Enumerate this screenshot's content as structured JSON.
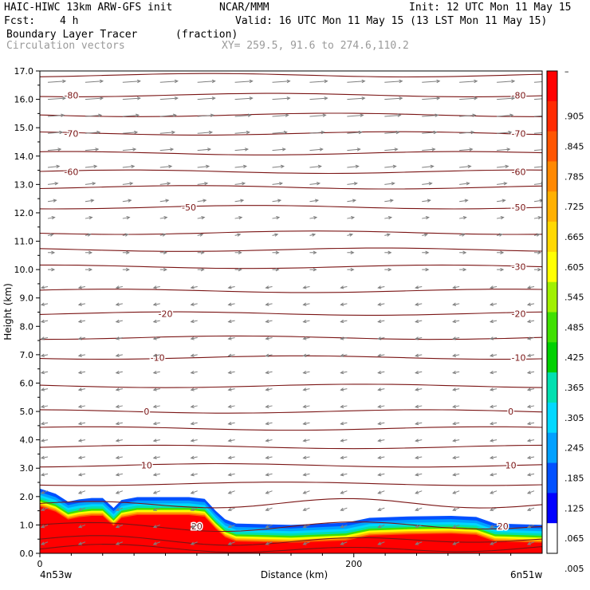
{
  "header": {
    "model": "HAIC-HIWC 13km ARW-GFS init",
    "org": "NCAR/MMM",
    "init": "Init: 12 UTC Mon 11 May 15",
    "fcst_label": "Fcst:",
    "fcst_value": "4 h",
    "valid": "Valid: 16 UTC Mon 11 May 15 (13 LST Mon 11 May 15)",
    "field": "Boundary Layer Tracer",
    "units": "(fraction)",
    "overlay": "Circulation vectors",
    "xy": "XY= 259.5, 91.6 to 274.6,110.2"
  },
  "colors": {
    "contour": "#7a1414",
    "vector": "#7f7f7f",
    "scale": [
      "#ffffff",
      "#0000ff",
      "#0050ff",
      "#00a0ff",
      "#00d8ff",
      "#00e0b0",
      "#00d000",
      "#40e000",
      "#a0f000",
      "#ffff00",
      "#ffd800",
      "#ffb000",
      "#ff8800",
      "#ff5500",
      "#ff2a00",
      "#ff0000"
    ]
  },
  "chart_data": {
    "type": "cross-section",
    "xlabel": "Distance (km)",
    "ylabel": "Height (km)",
    "xlim": [
      0,
      320
    ],
    "ylim": [
      0,
      17.0
    ],
    "x_ticks": [
      "0",
      "200"
    ],
    "y_ticks": [
      "0.0",
      "1.0",
      "2.0",
      "3.0",
      "4.0",
      "5.0",
      "6.0",
      "7.0",
      "8.0",
      "9.0",
      "10.0",
      "11.0",
      "12.0",
      "13.0",
      "14.0",
      "15.0",
      "16.0",
      "17.0"
    ],
    "endpoints": {
      "left": "4n53w",
      "right": "6n51w"
    },
    "colorbar": {
      "top_label": "–",
      "labels": [
        ".905",
        ".845",
        ".785",
        ".725",
        ".665",
        ".605",
        ".545",
        ".485",
        ".425",
        ".365",
        ".305",
        ".245",
        ".185",
        ".125",
        ".065",
        ".005"
      ]
    },
    "temperature_contours": [
      {
        "label": "-80",
        "height": 16.15,
        "label_x": [
          20,
          305
        ]
      },
      {
        "label": "-70",
        "height": 14.8,
        "label_x": [
          20,
          305
        ]
      },
      {
        "label": "-60",
        "height": 13.45,
        "label_x": [
          20,
          305
        ]
      },
      {
        "label": "-50",
        "height": 12.2,
        "label_x": [
          95,
          305
        ]
      },
      {
        "label": "-30",
        "height": 10.1,
        "label_x": [
          305
        ]
      },
      {
        "label": "-20",
        "height": 8.45,
        "label_x": [
          80,
          305
        ]
      },
      {
        "label": "-10",
        "height": 6.9,
        "label_x": [
          75,
          305
        ]
      },
      {
        "label": "0",
        "height": 5.0,
        "label_x": [
          68,
          300
        ]
      },
      {
        "label": "10",
        "height": 3.1,
        "label_x": [
          68,
          300
        ]
      },
      {
        "label": "20",
        "height": 0.95,
        "label_x": [
          100,
          295
        ]
      }
    ],
    "contour_levels": [
      0.15,
      0.45,
      0.95,
      1.75,
      2.45,
      3.1,
      3.75,
      4.4,
      5.0,
      5.9,
      6.9,
      7.6,
      8.45,
      9.25,
      10.1,
      10.7,
      11.3,
      12.2,
      12.9,
      13.45,
      14.1,
      14.8,
      15.45,
      16.15,
      16.85
    ],
    "tracer_top_km": [
      [
        0,
        2.28
      ],
      [
        10,
        2.1
      ],
      [
        18,
        1.82
      ],
      [
        25,
        1.9
      ],
      [
        33,
        1.95
      ],
      [
        40,
        1.95
      ],
      [
        47,
        1.6
      ],
      [
        52,
        1.88
      ],
      [
        62,
        1.98
      ],
      [
        75,
        1.98
      ],
      [
        95,
        1.98
      ],
      [
        105,
        1.92
      ],
      [
        112,
        1.5
      ],
      [
        118,
        1.2
      ],
      [
        125,
        1.05
      ],
      [
        160,
        1.0
      ],
      [
        195,
        1.08
      ],
      [
        210,
        1.25
      ],
      [
        235,
        1.3
      ],
      [
        262,
        1.32
      ],
      [
        278,
        1.28
      ],
      [
        290,
        1.05
      ],
      [
        320,
        1.0
      ]
    ],
    "tracer_bands": [
      {
        "fraction": 0.065,
        "depth_km": 0.0
      },
      {
        "fraction": 0.125,
        "depth_km": 0.12
      },
      {
        "fraction": 0.185,
        "depth_km": 0.22
      },
      {
        "fraction": 0.245,
        "depth_km": 0.3
      },
      {
        "fraction": 0.365,
        "depth_km": 0.38
      },
      {
        "fraction": 0.485,
        "depth_km": 0.45
      },
      {
        "fraction": 0.605,
        "depth_km": 0.52
      },
      {
        "fraction": 0.725,
        "depth_km": 0.58
      },
      {
        "fraction": 0.845,
        "depth_km": 0.63
      },
      {
        "fraction": 0.905,
        "depth_km": 0.7
      }
    ],
    "wind_vectors_note": "circulation vectors: strong westerlies above 11 km, weak easterlies below 10 km"
  }
}
